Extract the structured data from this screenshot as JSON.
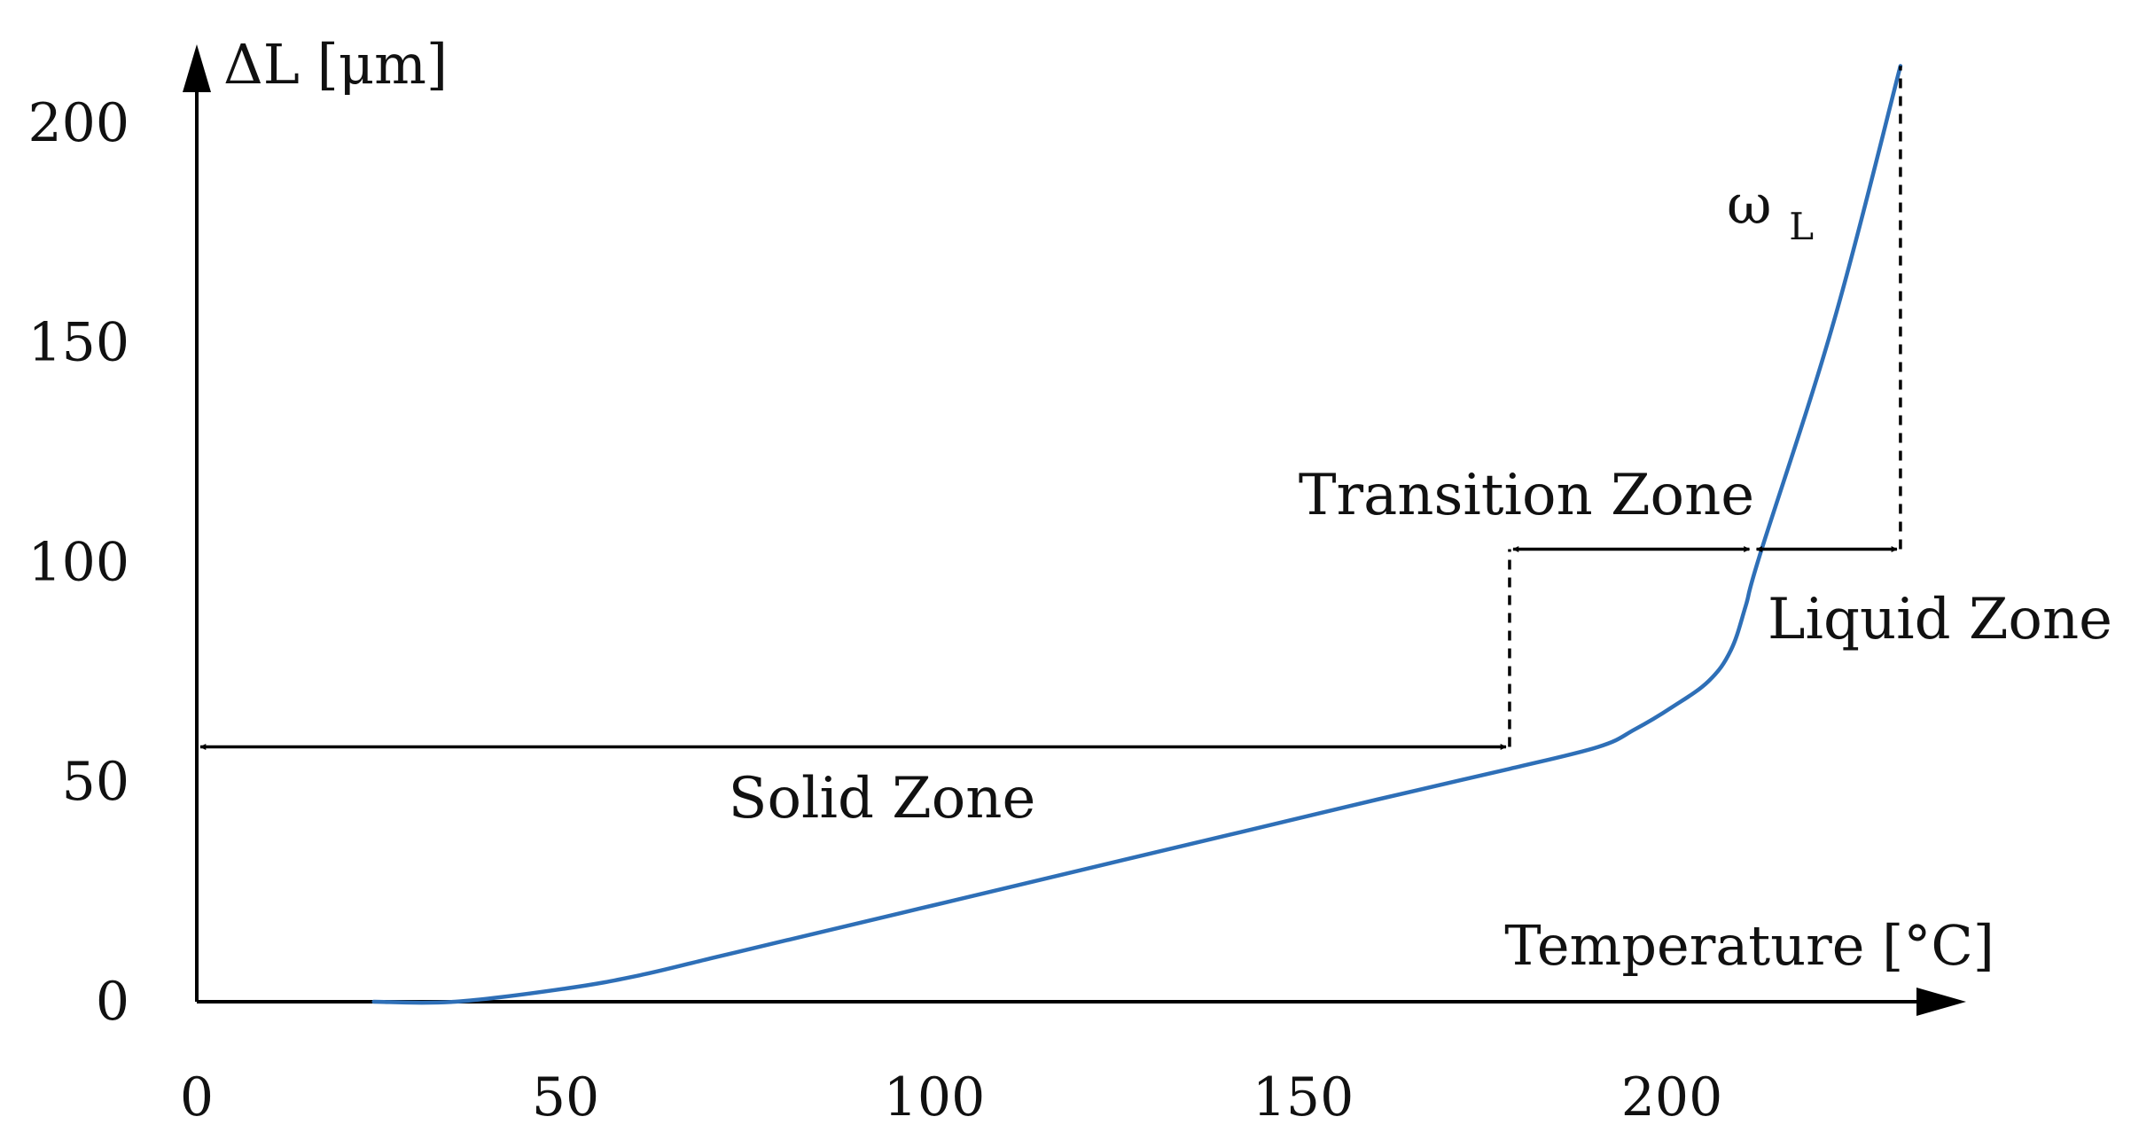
{
  "chart_data": {
    "type": "line",
    "title": "",
    "xlabel": "Temperature [°C]",
    "ylabel": "ΔL [μm]",
    "xlim": [
      0,
      240
    ],
    "ylim": [
      0,
      215
    ],
    "xticks": [
      {
        "value": 0,
        "label": "0"
      },
      {
        "value": 50,
        "label": "50"
      },
      {
        "value": 100,
        "label": "100"
      },
      {
        "value": 150,
        "label": "150"
      },
      {
        "value": 200,
        "label": "200"
      }
    ],
    "yticks": [
      {
        "value": 0,
        "label": "0"
      },
      {
        "value": 50,
        "label": "50"
      },
      {
        "value": 100,
        "label": "100"
      },
      {
        "value": 150,
        "label": "150"
      },
      {
        "value": 200,
        "label": "200"
      }
    ],
    "grid": false,
    "series": [
      {
        "color": "#2e6fb7",
        "x": [
          24,
          35,
          50,
          60,
          70,
          80,
          100,
          120,
          140,
          160,
          178,
          190,
          195,
          200,
          205,
          208,
          210,
          212,
          222,
          231
        ],
        "y": [
          0,
          0,
          3,
          6,
          10,
          14,
          22,
          30,
          38,
          46,
          53,
          58,
          62,
          67,
          73,
          80,
          90,
          102,
          155,
          213
        ]
      }
    ],
    "annotations": {
      "solid_zone": {
        "label": "Solid Zone",
        "x_start": 0,
        "x_end": 178,
        "y": 58
      },
      "transition_zone": {
        "label": "Transition Zone",
        "x_start": 178,
        "x_end": 211,
        "y": 103
      },
      "liquid_zone": {
        "label": "Liquid Zone",
        "x_start": 211,
        "x_end": 231,
        "y": 103
      },
      "omega_label": {
        "base": "ω",
        "subscript": "L"
      },
      "dashed_lines": [
        {
          "x": 178,
          "y_from": 58,
          "y_to": 103
        },
        {
          "x": 231,
          "y_from": 103,
          "y_to": 213
        }
      ]
    }
  }
}
